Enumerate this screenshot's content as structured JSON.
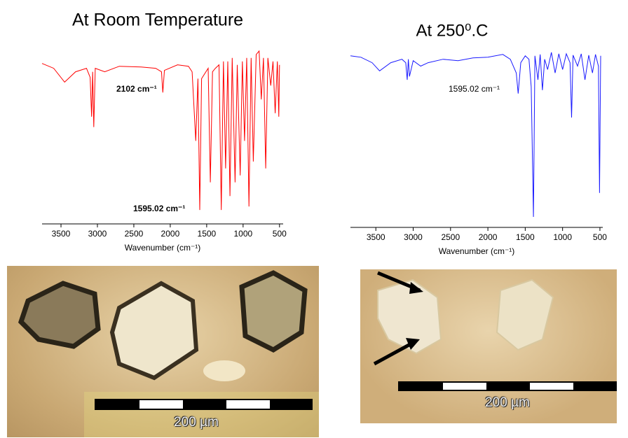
{
  "chart_data": [
    {
      "type": "line",
      "title": "At Room Temperature",
      "x_label": "Wavenumber (cm⁻¹)",
      "color": "#ff0000",
      "annotations": [
        "2102 cm⁻¹",
        "1595.02 cm⁻¹"
      ],
      "xlim": [
        3760,
        450
      ],
      "xticks": [
        3500,
        3000,
        2500,
        2000,
        1500,
        1000,
        500
      ],
      "ylim": [
        0,
        240
      ],
      "x": [
        3760,
        3600,
        3450,
        3300,
        3150,
        3100,
        3080,
        3065,
        3050,
        3030,
        2900,
        2700,
        2400,
        2200,
        2120,
        2102,
        2080,
        1900,
        1750,
        1700,
        1650,
        1620,
        1595,
        1570,
        1480,
        1450,
        1420,
        1380,
        1330,
        1300,
        1270,
        1240,
        1210,
        1180,
        1150,
        1110,
        1080,
        1040,
        1010,
        980,
        950,
        920,
        890,
        860,
        820,
        780,
        750,
        720,
        690,
        660,
        620,
        590,
        560,
        530,
        510,
        500
      ],
      "values": [
        217,
        210,
        190,
        205,
        210,
        197,
        140,
        205,
        125,
        210,
        205,
        213,
        212,
        210,
        205,
        175,
        207,
        215,
        213,
        205,
        105,
        195,
        5,
        195,
        210,
        45,
        205,
        210,
        215,
        5,
        220,
        65,
        220,
        25,
        225,
        45,
        215,
        55,
        220,
        105,
        225,
        10,
        225,
        75,
        230,
        235,
        165,
        225,
        65,
        225,
        185,
        220,
        145,
        220,
        140,
        215
      ]
    },
    {
      "type": "line",
      "title": "At 250⁰.C",
      "x_label": "Wavenumber (cm⁻¹)",
      "color": "#1a1aff",
      "annotations": [
        "1595.02 cm⁻¹"
      ],
      "xlim": [
        3840,
        462
      ],
      "xticks": [
        3500,
        3000,
        2500,
        2000,
        1500,
        1000,
        500
      ],
      "ylim": [
        0,
        245
      ],
      "x": [
        3840,
        3700,
        3550,
        3450,
        3300,
        3150,
        3100,
        3080,
        3065,
        3050,
        3000,
        2900,
        2800,
        2600,
        2400,
        2200,
        2000,
        1800,
        1700,
        1620,
        1595,
        1560,
        1500,
        1450,
        1420,
        1390,
        1370,
        1330,
        1300,
        1270,
        1240,
        1200,
        1150,
        1100,
        1050,
        1000,
        950,
        900,
        880,
        860,
        800,
        750,
        700,
        650,
        600,
        560,
        520,
        505,
        490
      ],
      "values": [
        235,
        233,
        225,
        213,
        225,
        230,
        225,
        200,
        230,
        205,
        228,
        220,
        225,
        230,
        228,
        232,
        233,
        237,
        230,
        210,
        180,
        225,
        235,
        230,
        190,
        0,
        235,
        200,
        237,
        185,
        230,
        215,
        240,
        210,
        238,
        215,
        238,
        225,
        145,
        236,
        220,
        238,
        200,
        236,
        210,
        237,
        220,
        35,
        235
      ]
    }
  ],
  "images": [
    {
      "scale_label": "200 µm"
    },
    {
      "scale_label": "200 µm"
    }
  ]
}
